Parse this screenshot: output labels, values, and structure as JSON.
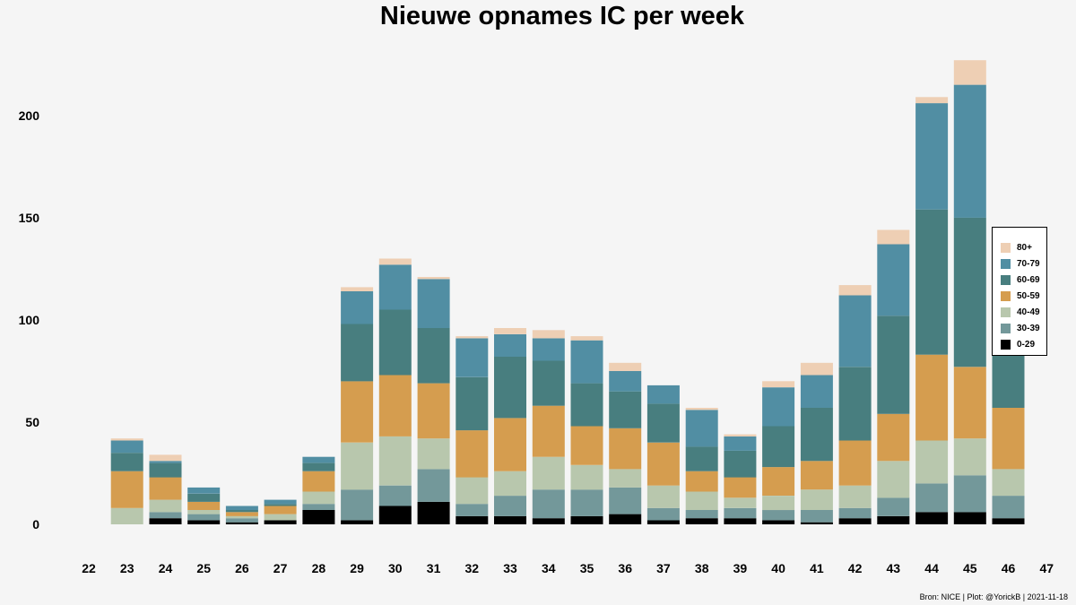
{
  "chart_data": {
    "type": "bar",
    "stacked": true,
    "title": "Nieuwe opnames IC per week",
    "xlabel": "",
    "ylabel": "",
    "x_ticks": [
      22,
      23,
      24,
      25,
      26,
      27,
      28,
      29,
      30,
      31,
      32,
      33,
      34,
      35,
      36,
      37,
      38,
      39,
      40,
      41,
      42,
      43,
      44,
      45,
      46,
      47
    ],
    "categories": [
      23,
      24,
      25,
      26,
      27,
      28,
      29,
      30,
      31,
      32,
      33,
      34,
      35,
      36,
      37,
      38,
      39,
      40,
      41,
      42,
      43,
      44,
      45,
      46
    ],
    "y_ticks": [
      0,
      50,
      100,
      150,
      200
    ],
    "ylim": [
      0,
      230
    ],
    "grid": false,
    "legend_position": "right",
    "series": [
      {
        "name": "0-29",
        "color": "#000000",
        "values": [
          0,
          3,
          2,
          1,
          2,
          7,
          2,
          9,
          11,
          4,
          4,
          3,
          4,
          5,
          2,
          3,
          3,
          2,
          1,
          3,
          4,
          6,
          6,
          3
        ]
      },
      {
        "name": "30-39",
        "color": "#73989a",
        "values": [
          0,
          3,
          3,
          2,
          0,
          3,
          15,
          10,
          16,
          6,
          10,
          14,
          13,
          13,
          6,
          4,
          5,
          5,
          6,
          5,
          9,
          14,
          18,
          11
        ]
      },
      {
        "name": "40-49",
        "color": "#b8c7ad",
        "values": [
          8,
          6,
          2,
          1,
          3,
          6,
          23,
          24,
          15,
          13,
          12,
          16,
          12,
          9,
          11,
          9,
          5,
          7,
          10,
          11,
          18,
          21,
          18,
          13
        ]
      },
      {
        "name": "50-59",
        "color": "#d59d4f",
        "values": [
          18,
          11,
          4,
          2,
          4,
          10,
          30,
          30,
          27,
          23,
          26,
          25,
          19,
          20,
          21,
          10,
          10,
          14,
          14,
          22,
          23,
          42,
          35,
          30
        ]
      },
      {
        "name": "60-69",
        "color": "#487e7f",
        "values": [
          9,
          7,
          4,
          1,
          1,
          4,
          28,
          32,
          27,
          26,
          30,
          22,
          21,
          18,
          19,
          12,
          13,
          20,
          26,
          36,
          48,
          71,
          73,
          43
        ]
      },
      {
        "name": "70-79",
        "color": "#518ea3",
        "values": [
          6,
          1,
          3,
          2,
          2,
          3,
          16,
          22,
          24,
          19,
          11,
          11,
          21,
          10,
          9,
          18,
          7,
          19,
          16,
          35,
          35,
          52,
          65,
          28
        ]
      },
      {
        "name": "80+",
        "color": "#eecfb4",
        "values": [
          1,
          3,
          0,
          0,
          0,
          0,
          2,
          3,
          1,
          1,
          3,
          4,
          2,
          4,
          0,
          1,
          1,
          3,
          6,
          5,
          7,
          3,
          12,
          0
        ]
      }
    ],
    "caption": "Bron: NICE | Plot: @YorickB |  2021-11-18"
  }
}
